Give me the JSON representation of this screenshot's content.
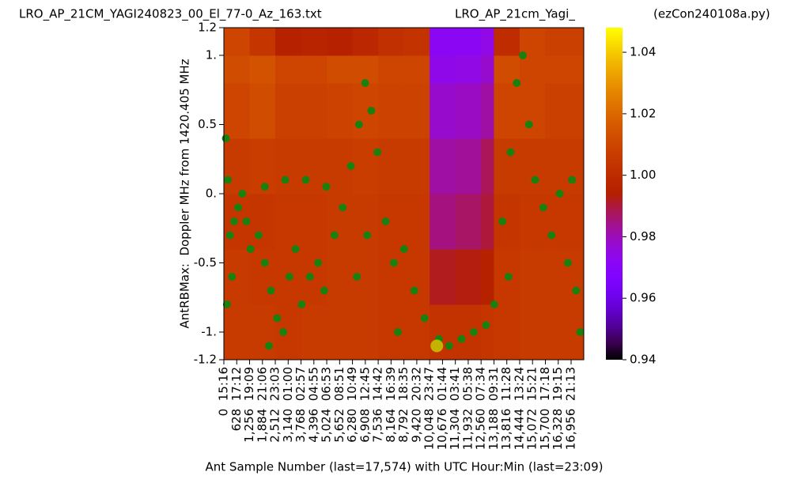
{
  "chart_data": {
    "type": "heatmap",
    "title": "LRO_AP_21CM_YAGI240823_00_El_77-0_Az_163.txt",
    "subtitle": "LRO_AP_21cm_Yagi_",
    "script_name": "(ezCon240108a.py)",
    "y_label": "AntRBMax:  Doppler MHz from 1420.405 MHz",
    "x_label": "Ant Sample Number (last=17,574) with UTC Hour:Min (last=23:09)",
    "xlim": [
      0,
      17574
    ],
    "ylim": [
      -1.2,
      1.2
    ],
    "yticks": [
      {
        "value": -1.2,
        "label": "-1.2"
      },
      {
        "value": -1,
        "label": "-1."
      },
      -0.5,
      {
        "value": 0,
        "label": "0."
      },
      0.5,
      {
        "value": 1,
        "label": "1."
      },
      1.2
    ],
    "xticks": [
      {
        "value": 0,
        "label": "0  15:16"
      },
      {
        "value": 628,
        "label": "628  17:12"
      },
      {
        "value": 1256,
        "label": "1,256  19:09"
      },
      {
        "value": 1884,
        "label": "1,884  21:06"
      },
      {
        "value": 2512,
        "label": "2,512  23:03"
      },
      {
        "value": 3140,
        "label": "3,140  01:00"
      },
      {
        "value": 3768,
        "label": "3,768  02:57"
      },
      {
        "value": 4396,
        "label": "4,396  04:55"
      },
      {
        "value": 5024,
        "label": "5,024  06:53"
      },
      {
        "value": 5652,
        "label": "5,652  08:51"
      },
      {
        "value": 6280,
        "label": "6,280  10:49"
      },
      {
        "value": 6908,
        "label": "6,908  12:45"
      },
      {
        "value": 7536,
        "label": "7,536  14:42"
      },
      {
        "value": 8164,
        "label": "8,164  16:39"
      },
      {
        "value": 8792,
        "label": "8,792  18:35"
      },
      {
        "value": 9420,
        "label": "9,420  20:32"
      },
      {
        "value": 10048,
        "label": "10,048  23:47"
      },
      {
        "value": 10676,
        "label": "10,676  01:44"
      },
      {
        "value": 11304,
        "label": "11,304  03:41"
      },
      {
        "value": 11932,
        "label": "11,932  05:38"
      },
      {
        "value": 12560,
        "label": "12,560  07:34"
      },
      {
        "value": 13188,
        "label": "13,188  09:31"
      },
      {
        "value": 13816,
        "label": "13,816  11:28"
      },
      {
        "value": 14444,
        "label": "14,444  13:24"
      },
      {
        "value": 15072,
        "label": "15,072  15:21"
      },
      {
        "value": 15700,
        "label": "15,700  17:18"
      },
      {
        "value": 16328,
        "label": "16,328  19:15"
      },
      {
        "value": 16956,
        "label": "16,956  21:13"
      }
    ],
    "colormap": "gnuplot",
    "clim": [
      0.94,
      1.048
    ],
    "cticks": [
      0.94,
      0.96,
      0.98,
      {
        "value": 1,
        "label": "1.00"
      },
      1.02,
      1.04
    ],
    "x_bins": [
      0,
      1256,
      2512,
      3768,
      5024,
      6280,
      7536,
      8792,
      10048,
      11304,
      12560,
      13188,
      14444,
      15700,
      17574
    ],
    "y_bins": [
      -1.2,
      -0.8,
      -0.4,
      0,
      0.4,
      0.8,
      1.0,
      1.2
    ],
    "z": [
      [
        1.006,
        1.006,
        1.005,
        1.006,
        1.006,
        1.006,
        1.005,
        1.005,
        1.003,
        1.003,
        1.004,
        1.005,
        1.006,
        1.006
      ],
      [
        1.006,
        1.005,
        1.005,
        1.005,
        1.006,
        1.006,
        1.005,
        1.005,
        0.992,
        0.993,
        0.995,
        1.005,
        1.006,
        1.006
      ],
      [
        1.004,
        1.004,
        1.005,
        1.005,
        1.006,
        1.006,
        1.005,
        1.005,
        0.985,
        0.987,
        0.99,
        1.004,
        1.005,
        1.005
      ],
      [
        1.006,
        1.007,
        1.006,
        1.006,
        1.006,
        1.007,
        1.006,
        1.006,
        0.982,
        0.983,
        0.988,
        1.006,
        1.006,
        1.006
      ],
      [
        1.01,
        1.012,
        1.008,
        1.008,
        1.009,
        1.01,
        1.009,
        1.009,
        0.978,
        0.979,
        0.982,
        1.01,
        1.01,
        1.008
      ],
      [
        1.012,
        1.014,
        1.01,
        1.01,
        1.012,
        1.012,
        1.01,
        1.01,
        0.974,
        0.975,
        0.978,
        1.012,
        1.01,
        1.01
      ],
      [
        1.01,
        1.004,
        0.995,
        0.996,
        0.995,
        0.998,
        1.002,
        1.003,
        0.972,
        0.972,
        0.975,
        1.0,
        1.01,
        1.008
      ]
    ],
    "scatter": [
      {
        "color": "#1a8010",
        "x": [
          100,
          200,
          300,
          400,
          150,
          500,
          700,
          900,
          1100,
          1300,
          1700,
          2000,
          2300,
          2600,
          2900,
          2200,
          3200,
          3500,
          3800,
          4200,
          4600,
          4900,
          2000,
          3000,
          4000,
          5000,
          5400,
          5800,
          6200,
          6600,
          6900,
          7200,
          7500,
          7000,
          6500,
          7900,
          8300,
          8800,
          9300,
          9800,
          8500,
          10500,
          11000,
          11600,
          12200,
          12800,
          13200,
          13600,
          14000,
          14300,
          14600,
          14900,
          15200,
          13900,
          15600,
          16000,
          16400,
          16800,
          17200,
          17400,
          17000
        ],
        "y": [
          0.4,
          0.1,
          -0.3,
          -0.6,
          -0.8,
          -0.2,
          -0.1,
          0.0,
          -0.2,
          -0.4,
          -0.3,
          -0.5,
          -0.7,
          -0.9,
          -1.0,
          -1.1,
          -0.6,
          -0.4,
          -0.8,
          -0.6,
          -0.5,
          -0.7,
          0.05,
          0.1,
          0.1,
          0.05,
          -0.3,
          -0.1,
          0.2,
          0.5,
          0.8,
          0.6,
          0.3,
          -0.3,
          -0.6,
          -0.2,
          -0.5,
          -0.4,
          -0.7,
          -0.9,
          -1.0,
          -1.05,
          -1.1,
          -1.05,
          -1.0,
          -0.95,
          -0.8,
          -0.2,
          0.3,
          0.8,
          1.0,
          0.5,
          0.1,
          -0.6,
          -0.1,
          -0.3,
          0.0,
          -0.5,
          -0.7,
          -1.0,
          0.1
        ]
      },
      {
        "color": "#c8c800",
        "x": [
          10400
        ],
        "y": [
          -1.1
        ]
      }
    ]
  }
}
